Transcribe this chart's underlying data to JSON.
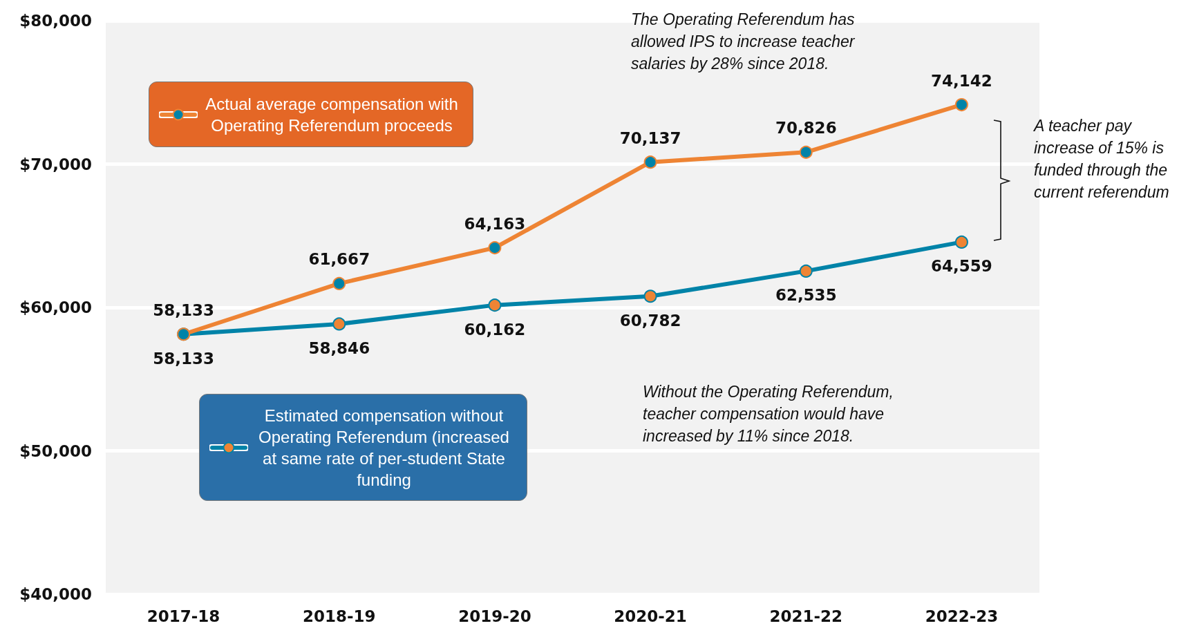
{
  "chart_data": {
    "type": "line",
    "categories": [
      "2017-18",
      "2018-19",
      "2019-20",
      "2020-21",
      "2021-22",
      "2022-23"
    ],
    "series": [
      {
        "name": "Actual average compensation with Operating Referendum proceeds",
        "color": "#ee8434",
        "values": [
          58133,
          61667,
          64163,
          70137,
          70826,
          74142
        ],
        "value_labels": [
          "58,133",
          "61,667",
          "64,163",
          "70,137",
          "70,826",
          "74,142"
        ]
      },
      {
        "name": "Estimated compensation without Operating Referendum (increased at same rate of per-student State funding",
        "color": "#0083a8",
        "values": [
          58133,
          58846,
          60162,
          60782,
          62535,
          64559
        ],
        "value_labels": [
          "58,133",
          "58,846",
          "60,162",
          "60,782",
          "62,535",
          "64,559"
        ]
      }
    ],
    "ylim": [
      40000,
      80000
    ],
    "yticks": [
      {
        "value": 40000,
        "label": "$40,000"
      },
      {
        "value": 50000,
        "label": "$50,000"
      },
      {
        "value": 60000,
        "label": "$60,000"
      },
      {
        "value": 70000,
        "label": "$70,000"
      },
      {
        "value": 80000,
        "label": "$80,000"
      }
    ],
    "grid": "y",
    "legend": "left",
    "marker": "circle",
    "line_style": "solid",
    "annotations": [
      "The Operating Referendum has allowed IPS to increase teacher salaries by 28% since 2018.",
      "A teacher pay increase of 15% is funded through the current referendum",
      "Without the Operating Referendum, teacher compensation would have increased by 11% since 2018."
    ]
  }
}
